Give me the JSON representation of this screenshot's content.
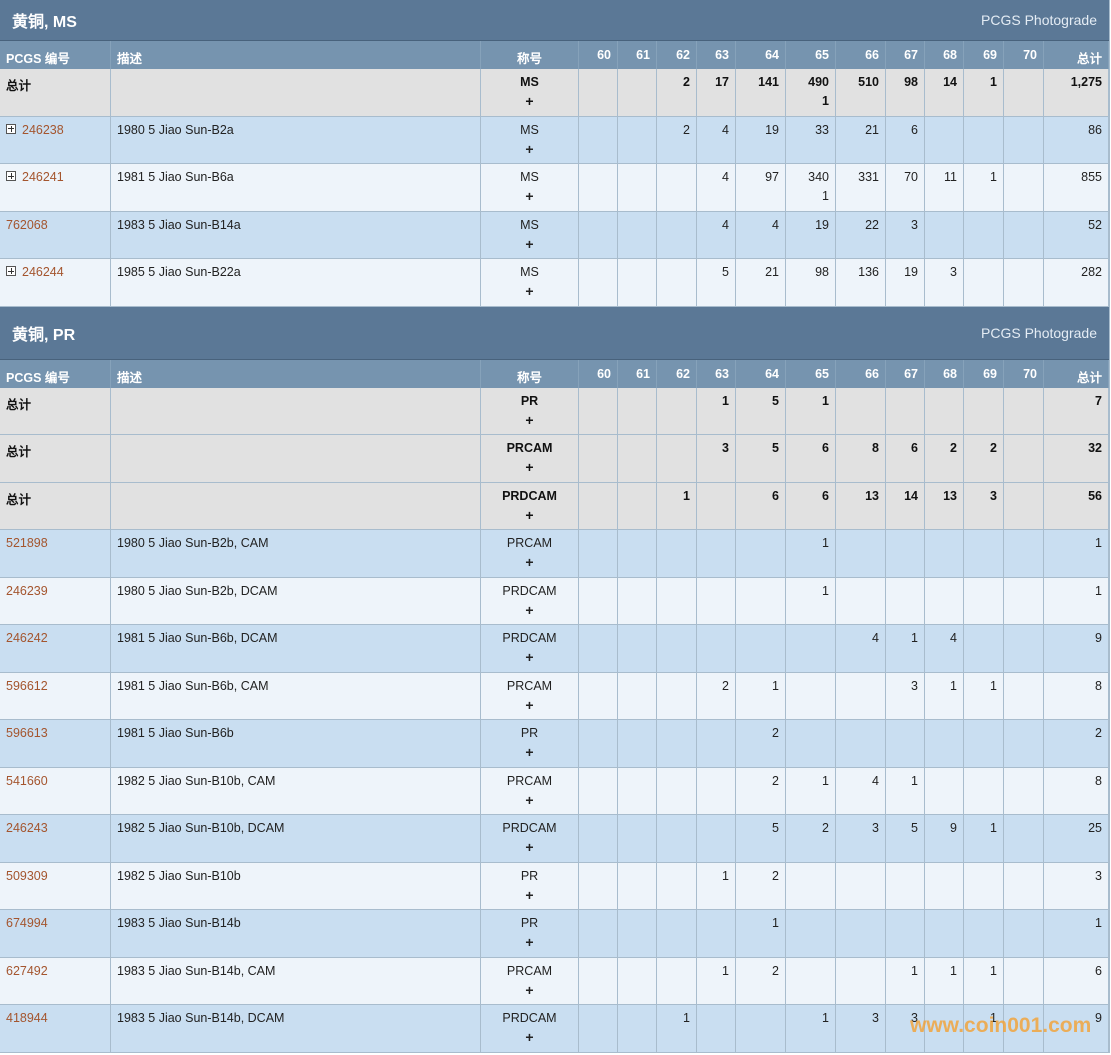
{
  "expand_label": "+",
  "watermark": "www.coin001.com",
  "sections": [
    {
      "title": "黄铜, MS",
      "photograde": "PCGS Photograde",
      "columns": {
        "pcgs": "PCGS 编号",
        "description": "描述",
        "designation": "称号",
        "grades": [
          "60",
          "61",
          "62",
          "63",
          "64",
          "65",
          "66",
          "67",
          "68",
          "69",
          "70"
        ],
        "total": "总计"
      },
      "rows": [
        {
          "pcgs": "总计",
          "is_total": true,
          "description": null,
          "designation": "MS",
          "grades": [
            null,
            null,
            "2",
            "17",
            "141",
            [
              "490",
              "1"
            ],
            "510",
            "98",
            "14",
            "1",
            null
          ],
          "total": "1,275"
        },
        {
          "pcgs": "246238",
          "expandable": true,
          "description": "1980 5 Jiao Sun-B2a",
          "designation": "MS",
          "grades": [
            null,
            null,
            "2",
            "4",
            "19",
            "33",
            "21",
            "6",
            null,
            null,
            null
          ],
          "total": "86"
        },
        {
          "pcgs": "246241",
          "expandable": true,
          "description": "1981 5 Jiao Sun-B6a",
          "designation": "MS",
          "grades": [
            null,
            null,
            null,
            "4",
            "97",
            [
              "340",
              "1"
            ],
            "331",
            "70",
            "11",
            "1",
            null
          ],
          "total": "855"
        },
        {
          "pcgs": "762068",
          "expandable": false,
          "description": "1983 5 Jiao Sun-B14a",
          "designation": "MS",
          "grades": [
            null,
            null,
            null,
            "4",
            "4",
            "19",
            "22",
            "3",
            null,
            null,
            null
          ],
          "total": "52"
        },
        {
          "pcgs": "246244",
          "expandable": true,
          "description": "1985 5 Jiao Sun-B22a",
          "designation": "MS",
          "grades": [
            null,
            null,
            null,
            "5",
            "21",
            "98",
            "136",
            "19",
            "3",
            null,
            null
          ],
          "total": "282"
        }
      ]
    },
    {
      "title": "黄铜, PR",
      "photograde": "PCGS Photograde",
      "columns": {
        "pcgs": "PCGS 编号",
        "description": "描述",
        "designation": "称号",
        "grades": [
          "60",
          "61",
          "62",
          "63",
          "64",
          "65",
          "66",
          "67",
          "68",
          "69",
          "70"
        ],
        "total": "总计"
      },
      "rows": [
        {
          "pcgs": "总计",
          "is_total": true,
          "description": null,
          "designation": "PR",
          "grades": [
            null,
            null,
            null,
            "1",
            "5",
            "1",
            null,
            null,
            null,
            null,
            null
          ],
          "total": "7"
        },
        {
          "pcgs": "总计",
          "is_total": true,
          "description": null,
          "designation": "PRCAM",
          "grades": [
            null,
            null,
            null,
            "3",
            "5",
            "6",
            "8",
            "6",
            "2",
            "2",
            null
          ],
          "total": "32"
        },
        {
          "pcgs": "总计",
          "is_total": true,
          "description": null,
          "designation": "PRDCAM",
          "grades": [
            null,
            null,
            "1",
            null,
            "6",
            "6",
            "13",
            "14",
            "13",
            "3",
            null
          ],
          "total": "56"
        },
        {
          "pcgs": "521898",
          "description": "1980 5 Jiao Sun-B2b, CAM",
          "designation": "PRCAM",
          "grades": [
            null,
            null,
            null,
            null,
            null,
            "1",
            null,
            null,
            null,
            null,
            null
          ],
          "total": "1"
        },
        {
          "pcgs": "246239",
          "description": "1980 5 Jiao Sun-B2b, DCAM",
          "designation": "PRDCAM",
          "grades": [
            null,
            null,
            null,
            null,
            null,
            "1",
            null,
            null,
            null,
            null,
            null
          ],
          "total": "1"
        },
        {
          "pcgs": "246242",
          "description": "1981 5 Jiao Sun-B6b, DCAM",
          "designation": "PRDCAM",
          "grades": [
            null,
            null,
            null,
            null,
            null,
            null,
            "4",
            "1",
            "4",
            null,
            null
          ],
          "total": "9"
        },
        {
          "pcgs": "596612",
          "description": "1981 5 Jiao Sun-B6b, CAM",
          "designation": "PRCAM",
          "grades": [
            null,
            null,
            null,
            "2",
            "1",
            null,
            null,
            "3",
            "1",
            "1",
            null
          ],
          "total": "8"
        },
        {
          "pcgs": "596613",
          "description": "1981 5 Jiao Sun-B6b",
          "designation": "PR",
          "grades": [
            null,
            null,
            null,
            null,
            "2",
            null,
            null,
            null,
            null,
            null,
            null
          ],
          "total": "2"
        },
        {
          "pcgs": "541660",
          "description": "1982 5 Jiao Sun-B10b, CAM",
          "designation": "PRCAM",
          "grades": [
            null,
            null,
            null,
            null,
            "2",
            "1",
            "4",
            "1",
            null,
            null,
            null
          ],
          "total": "8"
        },
        {
          "pcgs": "246243",
          "description": "1982 5 Jiao Sun-B10b, DCAM",
          "designation": "PRDCAM",
          "grades": [
            null,
            null,
            null,
            null,
            "5",
            "2",
            "3",
            "5",
            "9",
            "1",
            null
          ],
          "total": "25"
        },
        {
          "pcgs": "509309",
          "description": "1982 5 Jiao Sun-B10b",
          "designation": "PR",
          "grades": [
            null,
            null,
            null,
            "1",
            "2",
            null,
            null,
            null,
            null,
            null,
            null
          ],
          "total": "3"
        },
        {
          "pcgs": "674994",
          "description": "1983 5 Jiao Sun-B14b",
          "designation": "PR",
          "grades": [
            null,
            null,
            null,
            null,
            "1",
            null,
            null,
            null,
            null,
            null,
            null
          ],
          "total": "1"
        },
        {
          "pcgs": "627492",
          "description": "1983 5 Jiao Sun-B14b, CAM",
          "designation": "PRCAM",
          "grades": [
            null,
            null,
            null,
            "1",
            "2",
            null,
            null,
            "1",
            "1",
            "1",
            null
          ],
          "total": "6"
        },
        {
          "pcgs": "418944",
          "description": "1983 5 Jiao Sun-B14b, DCAM",
          "designation": "PRDCAM",
          "grades": [
            null,
            null,
            "1",
            null,
            null,
            "1",
            "3",
            "3",
            null,
            "1",
            null
          ],
          "total": "9"
        }
      ]
    }
  ]
}
